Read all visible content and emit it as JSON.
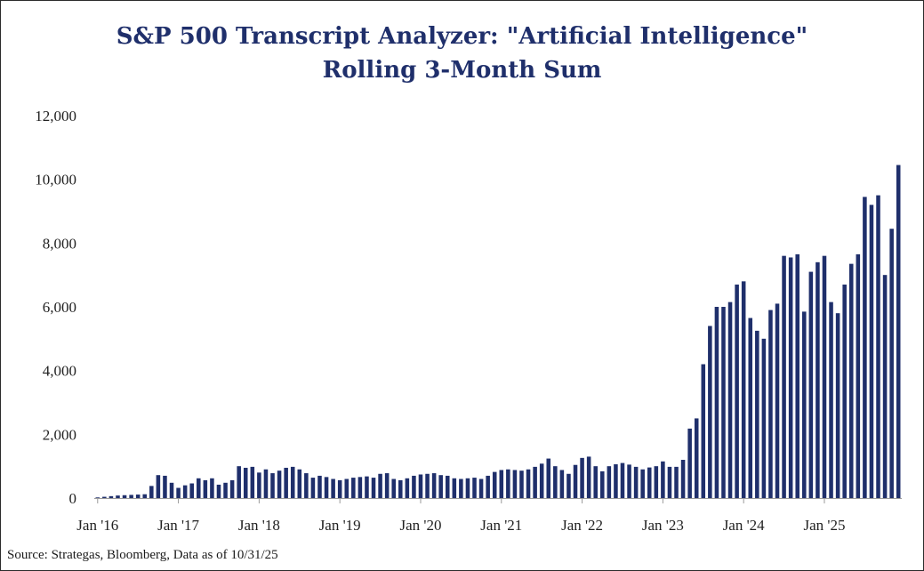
{
  "chart_data": {
    "type": "bar",
    "title_lines": [
      "S&P 500 Transcript Analyzer: \"Artificial Intelligence\"",
      "Rolling 3-Month Sum"
    ],
    "source": "Source: Strategas, Bloomberg, Data as of 10/31/25",
    "xlabel": "",
    "ylabel": "",
    "ylim": [
      0,
      12000
    ],
    "y_ticks": [
      "0",
      "2,000",
      "4,000",
      "6,000",
      "8,000",
      "10,000",
      "12,000"
    ],
    "y_tick_values": [
      0,
      2000,
      4000,
      6000,
      8000,
      10000,
      12000
    ],
    "x_tick_labels": [
      "Jan '16",
      "Jan '17",
      "Jan '18",
      "Jan '19",
      "Jan '20",
      "Jan '21",
      "Jan '22",
      "Jan '23",
      "Jan '24",
      "Jan '25"
    ],
    "x_tick_indices": [
      0,
      12,
      24,
      36,
      48,
      60,
      72,
      84,
      96,
      108
    ],
    "grid": false,
    "bar_color": "#1f2f6b",
    "x_start": "2016-01",
    "x_end": "2025-10",
    "values": [
      20,
      40,
      60,
      80,
      90,
      100,
      110,
      120,
      380,
      720,
      700,
      480,
      320,
      400,
      460,
      620,
      560,
      620,
      420,
      480,
      560,
      1000,
      950,
      980,
      800,
      900,
      780,
      860,
      950,
      980,
      900,
      780,
      640,
      700,
      660,
      600,
      560,
      600,
      640,
      660,
      680,
      640,
      760,
      780,
      600,
      560,
      620,
      700,
      740,
      760,
      780,
      720,
      700,
      620,
      600,
      620,
      640,
      600,
      700,
      820,
      880,
      900,
      880,
      860,
      900,
      980,
      1080,
      1240,
      1000,
      880,
      760,
      1040,
      1260,
      1300,
      1000,
      840,
      1000,
      1060,
      1100,
      1050,
      980,
      900,
      960,
      1000,
      1150,
      980,
      980,
      1200,
      2180,
      2500,
      4200,
      5400,
      6000,
      6000,
      6150,
      6700,
      6800,
      5650,
      5250,
      5000,
      5900,
      6100,
      7600,
      7550,
      7650,
      5850,
      7100,
      7400,
      7600,
      6150,
      5800,
      6700,
      7350,
      7650,
      9450,
      9200,
      9500,
      7000,
      8450,
      10450
    ]
  }
}
